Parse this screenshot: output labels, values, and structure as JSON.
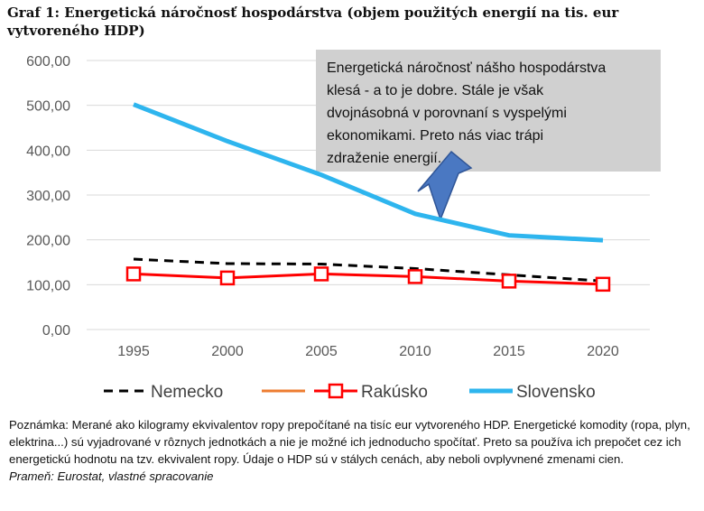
{
  "chart_data": {
    "type": "line",
    "title": "Graf 1: Energetická náročnosť hospodárstva (objem použitých energií na tis. eur vytvoreného HDP)",
    "categories": [
      "1995",
      "2000",
      "2005",
      "2010",
      "2015",
      "2020"
    ],
    "series": [
      {
        "name": "Nemecko",
        "color": "#000000",
        "dash": true,
        "marker": false,
        "values": [
          157,
          147,
          146,
          136,
          122,
          108
        ]
      },
      {
        "name": null,
        "color": "#ed7d31",
        "dash": false,
        "marker": false,
        "values": [
          null,
          null,
          null,
          null,
          null,
          null
        ]
      },
      {
        "name": "Rakúsko",
        "color": "#ff0000",
        "dash": false,
        "marker": true,
        "values": [
          124,
          115,
          124,
          118,
          108,
          101
        ]
      },
      {
        "name": "Slovensko",
        "color": "#2eb5ee",
        "dash": false,
        "marker": false,
        "values": [
          502,
          420,
          345,
          258,
          210,
          199
        ]
      }
    ],
    "ylim": [
      0,
      600
    ],
    "yticks": [
      {
        "value": 0,
        "label": "0,00"
      },
      {
        "value": 100,
        "label": "100,00"
      },
      {
        "value": 200,
        "label": "200,00"
      },
      {
        "value": 300,
        "label": "300,00"
      },
      {
        "value": 400,
        "label": "400,00"
      },
      {
        "value": 500,
        "label": "500,00"
      },
      {
        "value": 600,
        "label": "600,00"
      }
    ],
    "grid": true,
    "legend": "bottom",
    "annotation": [
      "Energetická náročnosť nášho hospodárstva",
      "klesá - a to je dobre. Stále je však",
      "dvojnásobná v porovnaní s vyspelými",
      "ekonomikami.  Preto nás viac trápi",
      "zdraženie energií."
    ],
    "note": "Poznámka: Merané ako kilogramy ekvivalentov ropy prepočítané na tisíc eur vytvoreného HDP. Energetické komodity (ropa, plyn, elektrina...) sú vyjadrované v rôznych jednotkách a nie je možné ich jednoducho spočítať. Preto sa používa ich prepočet cez ich energetickú hodnotu na tzv. ekvivalent ropy. Údaje o HDP sú v stálych cenách, aby neboli ovplyvnené zmenami cien.",
    "source": "Prameň: Eurostat, vlastné spracovanie"
  }
}
